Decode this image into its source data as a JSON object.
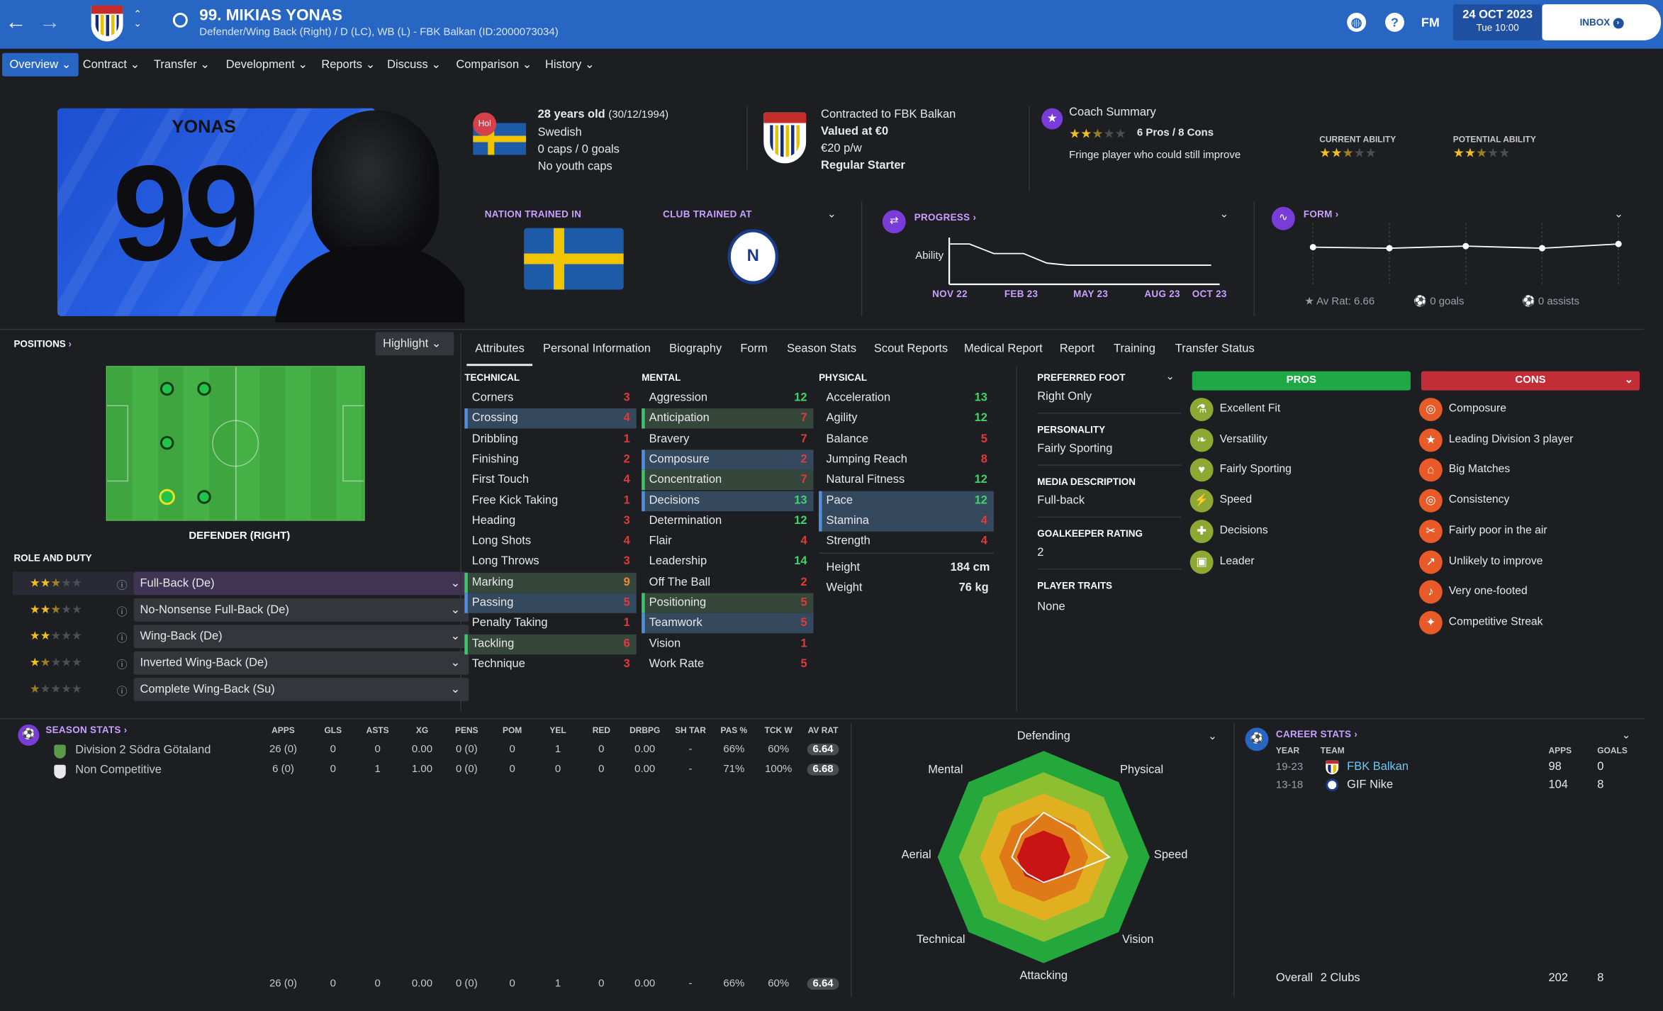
{
  "header": {
    "title": "99. MIKIAS YONAS",
    "subtitle": "Defender/Wing Back (Right) / D (LC), WB (L) - FBK Balkan (ID:2000073034)",
    "date": "24 OCT 2023",
    "time": "Tue 10:00",
    "inbox": "INBOX",
    "fm": "FM",
    "help": "?"
  },
  "menu": [
    "Overview",
    "Contract",
    "Transfer",
    "Development",
    "Reports",
    "Discuss",
    "Comparison",
    "History"
  ],
  "kit": {
    "name": "YONAS",
    "number": "99"
  },
  "bio": {
    "age": "28 years old",
    "dob": "(30/12/1994)",
    "nationality": "Swedish",
    "caps": "0 caps / 0 goals",
    "youth": "No youth caps",
    "flag_badge": "Hol"
  },
  "contract": {
    "line1": "Contracted to FBK Balkan",
    "line2": "Valued at €0",
    "line3": "€20 p/w",
    "line4": "Regular Starter"
  },
  "coach": {
    "title": "Coach Summary",
    "pros_cons": "6 Pros / 8 Cons",
    "summary": "Fringe player who could still improve",
    "ca_label": "CURRENT ABILITY",
    "pa_label": "POTENTIAL ABILITY",
    "ca": 2.5,
    "pa": 2.5
  },
  "trained": {
    "nation_label": "NATION TRAINED IN",
    "club_label": "CLUB TRAINED AT"
  },
  "progress": {
    "label": "PROGRESS",
    "ylabel": "Ability",
    "x_labels": [
      "NOV 22",
      "FEB 23",
      "MAY 23",
      "AUG 23",
      "OCT 23"
    ]
  },
  "form": {
    "label": "FORM",
    "av_rat": "Av Rat: 6.66",
    "goals": "0 goals",
    "assists": "0 assists"
  },
  "positions": {
    "label": "POSITIONS",
    "highlight": "Highlight",
    "selected": "DEFENDER (RIGHT)"
  },
  "roles": {
    "label": "ROLE AND DUTY",
    "items": [
      {
        "name": "Full-Back (De)",
        "stars": 2.5
      },
      {
        "name": "No-Nonsense Full-Back (De)",
        "stars": 2.5
      },
      {
        "name": "Wing-Back (De)",
        "stars": 2
      },
      {
        "name": "Inverted Wing-Back (De)",
        "stars": 1.5
      },
      {
        "name": "Complete Wing-Back (Su)",
        "stars": 0.5
      }
    ]
  },
  "tabs": [
    "Attributes",
    "Personal Information",
    "Biography",
    "Form",
    "Season Stats",
    "Scout Reports",
    "Medical Report",
    "Report",
    "Training",
    "Transfer Status"
  ],
  "technical": {
    "label": "TECHNICAL",
    "items": [
      {
        "n": "Corners",
        "v": "3",
        "c": "red",
        "hl": ""
      },
      {
        "n": "Crossing",
        "v": "4",
        "c": "red",
        "hl": "b"
      },
      {
        "n": "Dribbling",
        "v": "1",
        "c": "red",
        "hl": ""
      },
      {
        "n": "Finishing",
        "v": "2",
        "c": "red",
        "hl": ""
      },
      {
        "n": "First Touch",
        "v": "4",
        "c": "red",
        "hl": ""
      },
      {
        "n": "Free Kick Taking",
        "v": "1",
        "c": "red",
        "hl": ""
      },
      {
        "n": "Heading",
        "v": "3",
        "c": "red",
        "hl": ""
      },
      {
        "n": "Long Shots",
        "v": "4",
        "c": "red",
        "hl": ""
      },
      {
        "n": "Long Throws",
        "v": "3",
        "c": "red",
        "hl": ""
      },
      {
        "n": "Marking",
        "v": "9",
        "c": "org",
        "hl": "g"
      },
      {
        "n": "Passing",
        "v": "5",
        "c": "red",
        "hl": "b"
      },
      {
        "n": "Penalty Taking",
        "v": "1",
        "c": "red",
        "hl": ""
      },
      {
        "n": "Tackling",
        "v": "6",
        "c": "red",
        "hl": "g"
      },
      {
        "n": "Technique",
        "v": "3",
        "c": "red",
        "hl": ""
      }
    ]
  },
  "mental": {
    "label": "MENTAL",
    "items": [
      {
        "n": "Aggression",
        "v": "12",
        "c": "grn",
        "hl": ""
      },
      {
        "n": "Anticipation",
        "v": "7",
        "c": "red",
        "hl": "g"
      },
      {
        "n": "Bravery",
        "v": "7",
        "c": "red",
        "hl": ""
      },
      {
        "n": "Composure",
        "v": "2",
        "c": "red",
        "hl": "b"
      },
      {
        "n": "Concentration",
        "v": "7",
        "c": "red",
        "hl": "g"
      },
      {
        "n": "Decisions",
        "v": "13",
        "c": "grn",
        "hl": "b"
      },
      {
        "n": "Determination",
        "v": "12",
        "c": "grn",
        "hl": ""
      },
      {
        "n": "Flair",
        "v": "4",
        "c": "red",
        "hl": ""
      },
      {
        "n": "Leadership",
        "v": "14",
        "c": "grn",
        "hl": ""
      },
      {
        "n": "Off The Ball",
        "v": "2",
        "c": "red",
        "hl": ""
      },
      {
        "n": "Positioning",
        "v": "5",
        "c": "red",
        "hl": "g"
      },
      {
        "n": "Teamwork",
        "v": "5",
        "c": "red",
        "hl": "b"
      },
      {
        "n": "Vision",
        "v": "1",
        "c": "red",
        "hl": ""
      },
      {
        "n": "Work Rate",
        "v": "5",
        "c": "red",
        "hl": ""
      }
    ]
  },
  "physical": {
    "label": "PHYSICAL",
    "items": [
      {
        "n": "Acceleration",
        "v": "13",
        "c": "grn",
        "hl": ""
      },
      {
        "n": "Agility",
        "v": "12",
        "c": "grn",
        "hl": ""
      },
      {
        "n": "Balance",
        "v": "5",
        "c": "red",
        "hl": ""
      },
      {
        "n": "Jumping Reach",
        "v": "8",
        "c": "red",
        "hl": ""
      },
      {
        "n": "Natural Fitness",
        "v": "12",
        "c": "grn",
        "hl": ""
      },
      {
        "n": "Pace",
        "v": "12",
        "c": "grn",
        "hl": "b"
      },
      {
        "n": "Stamina",
        "v": "4",
        "c": "red",
        "hl": "b"
      },
      {
        "n": "Strength",
        "v": "4",
        "c": "red",
        "hl": ""
      }
    ],
    "height_label": "Height",
    "height": "184 cm",
    "weight_label": "Weight",
    "weight": "76 kg"
  },
  "info": {
    "foot_label": "PREFERRED FOOT",
    "foot": "Right Only",
    "pers_label": "PERSONALITY",
    "pers": "Fairly Sporting",
    "media_label": "MEDIA DESCRIPTION",
    "media": "Full-back",
    "gk_label": "GOALKEEPER RATING",
    "gk": "2",
    "traits_label": "PLAYER TRAITS",
    "traits": "None"
  },
  "pros": {
    "label": "PROS",
    "items": [
      "Excellent Fit",
      "Versatility",
      "Fairly Sporting",
      "Speed",
      "Decisions",
      "Leader"
    ]
  },
  "cons": {
    "label": "CONS",
    "items": [
      "Composure",
      "Leading Division 3 player",
      "Big Matches",
      "Consistency",
      "Fairly poor in the air",
      "Unlikely to improve",
      "Very one-footed",
      "Competitive Streak"
    ]
  },
  "season": {
    "label": "SEASON STATS",
    "headers": [
      "APPS",
      "GLS",
      "ASTS",
      "XG",
      "PENS",
      "POM",
      "YEL",
      "RED",
      "DRBPG",
      "SH TAR",
      "PAS %",
      "TCK W",
      "AV RAT"
    ],
    "rows": [
      {
        "name": "Division 2 Södra Götaland",
        "vals": [
          "26 (0)",
          "0",
          "0",
          "0.00",
          "0 (0)",
          "0",
          "1",
          "0",
          "0.00",
          "-",
          "66%",
          "60%",
          "6.64"
        ]
      },
      {
        "name": "Non Competitive",
        "vals": [
          "6 (0)",
          "0",
          "1",
          "1.00",
          "0 (0)",
          "0",
          "0",
          "0",
          "0.00",
          "-",
          "71%",
          "100%",
          "6.68"
        ]
      }
    ],
    "total": [
      "26 (0)",
      "0",
      "0",
      "0.00",
      "0 (0)",
      "0",
      "1",
      "0",
      "0.00",
      "-",
      "66%",
      "60%",
      "6.64"
    ]
  },
  "radar": {
    "labels": [
      "Defending",
      "Physical",
      "Speed",
      "Vision",
      "Attacking",
      "Technical",
      "Aerial",
      "Mental"
    ]
  },
  "career": {
    "label": "CAREER STATS",
    "headers": {
      "year": "YEAR",
      "team": "TEAM",
      "apps": "APPS",
      "goals": "GOALS"
    },
    "rows": [
      {
        "year": "19-23",
        "team": "FBK Balkan",
        "apps": "98",
        "goals": "0"
      },
      {
        "year": "13-18",
        "team": "GIF Nike",
        "apps": "104",
        "goals": "8"
      }
    ],
    "overall": {
      "label": "Overall",
      "clubs": "2 Clubs",
      "apps": "202",
      "goals": "8"
    }
  }
}
